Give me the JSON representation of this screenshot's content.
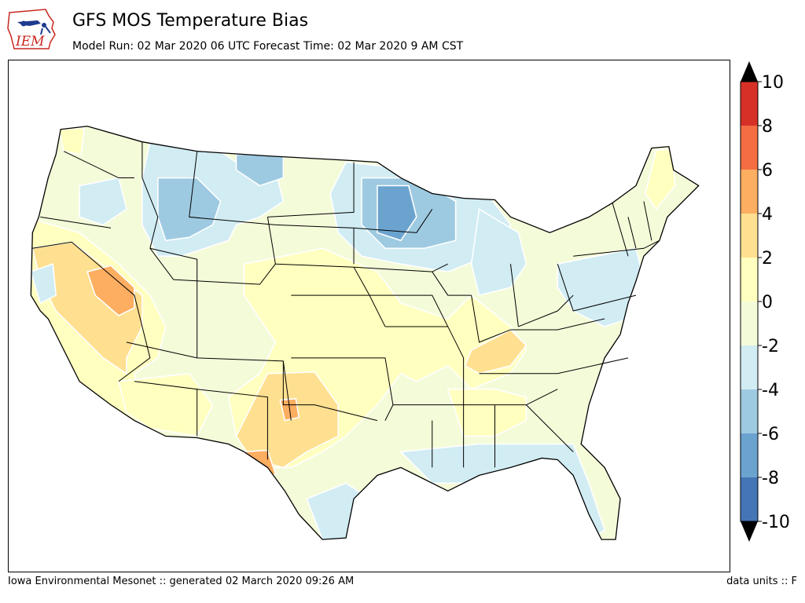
{
  "header": {
    "logo_text": "IEM",
    "title": "GFS MOS Temperature Bias",
    "subtitle": "Model Run: 02 Mar 2020 06 UTC Forecast Time: 02 Mar 2020 9 AM CST"
  },
  "footer": {
    "left": "Iowa Environmental Mesonet :: generated 02 March 2020 09:26 AM",
    "right": "data units :: F"
  },
  "colorbar": {
    "tick_labels": [
      "10",
      "8",
      "6",
      "4",
      "2",
      "0",
      "-2",
      "-4",
      "-6",
      "-8",
      "-10"
    ],
    "bins": [
      {
        "range": [
          8,
          10
        ],
        "color": "#d73027"
      },
      {
        "range": [
          6,
          8
        ],
        "color": "#f46d43"
      },
      {
        "range": [
          4,
          6
        ],
        "color": "#fdae61"
      },
      {
        "range": [
          2,
          4
        ],
        "color": "#fee090"
      },
      {
        "range": [
          0,
          2
        ],
        "color": "#ffffbf"
      },
      {
        "range": [
          -2,
          0
        ],
        "color": "#f4fbd9"
      },
      {
        "range": [
          -4,
          -2
        ],
        "color": "#d1ecf3"
      },
      {
        "range": [
          -6,
          -4
        ],
        "color": "#9ecae1"
      },
      {
        "range": [
          -8,
          -6
        ],
        "color": "#6ba3cf"
      },
      {
        "range": [
          -10,
          -8
        ],
        "color": "#4575b4"
      }
    ],
    "extend_color": "#000000"
  },
  "map_colors": {
    "background": "#f4fbd9",
    "bias_0_2": "#ffffbf",
    "bias_2_4": "#fee090",
    "bias_4_6": "#fdae61",
    "bias_6_8": "#f46d43",
    "bias_m2_m4": "#d1ecf3",
    "bias_m4_m6": "#9ecae1",
    "bias_m6_m8": "#6ba3cf"
  }
}
